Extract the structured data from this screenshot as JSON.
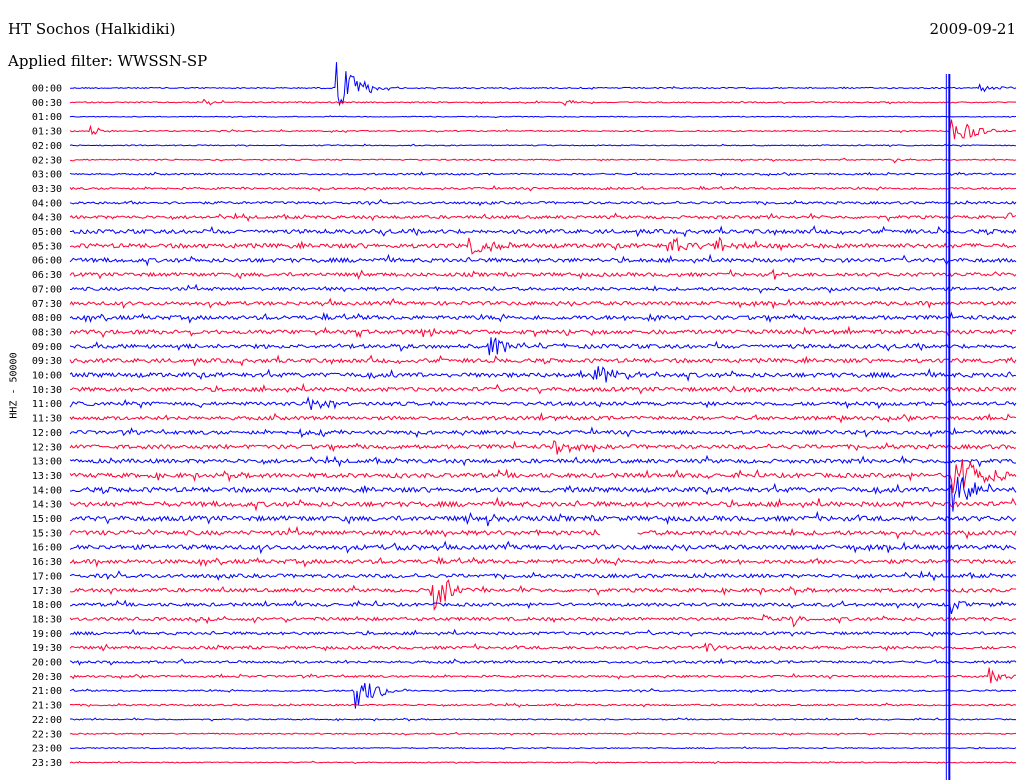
{
  "header": {
    "station": "HT Sochos (Halkidiki)",
    "filter": "Applied filter: WWSSN-SP",
    "date": "2009-09-21",
    "channel": "HHZ - 50000"
  },
  "chart_data": {
    "type": "line",
    "title": "HT Sochos (Halkidiki)",
    "subtitle": "Applied filter: WWSSN-SP",
    "ylabel": "HHZ - 50000",
    "date": "2009-09-21",
    "rows": [
      "00:00",
      "00:30",
      "01:00",
      "01:30",
      "02:00",
      "02:30",
      "03:00",
      "03:30",
      "04:00",
      "04:30",
      "05:00",
      "05:30",
      "06:00",
      "06:30",
      "07:00",
      "07:30",
      "08:00",
      "08:30",
      "09:00",
      "09:30",
      "10:00",
      "10:30",
      "11:00",
      "11:30",
      "12:00",
      "12:30",
      "13:00",
      "13:30",
      "14:00",
      "14:30",
      "15:00",
      "15:30",
      "16:00",
      "16:30",
      "17:00",
      "17:30",
      "18:00",
      "18:30",
      "19:00",
      "19:30",
      "20:00",
      "20:30",
      "21:00",
      "21:30",
      "22:00",
      "22:30",
      "23:00",
      "23:30"
    ],
    "series_colors": [
      "#0000ff",
      "#ff0033"
    ],
    "noise_levels": [
      0.6,
      0.6,
      0.4,
      0.6,
      0.5,
      0.6,
      0.8,
      1.0,
      1.2,
      1.5,
      2.0,
      2.2,
      2.0,
      1.8,
      1.6,
      1.8,
      2.0,
      2.0,
      2.0,
      2.0,
      2.2,
      2.0,
      1.8,
      1.8,
      1.8,
      2.0,
      2.0,
      2.2,
      2.4,
      2.4,
      2.4,
      2.2,
      2.2,
      2.0,
      1.8,
      1.8,
      1.6,
      1.6,
      1.4,
      1.4,
      1.2,
      1.0,
      0.8,
      0.8,
      0.6,
      0.6,
      0.5,
      0.5
    ],
    "events": [
      {
        "row": 0,
        "x": 0.28,
        "amp": 38,
        "len": 0.04
      },
      {
        "row": 0,
        "x": 0.96,
        "amp": 6,
        "len": 0.03
      },
      {
        "row": 1,
        "x": 0.14,
        "amp": 5,
        "len": 0.02
      },
      {
        "row": 1,
        "x": 0.52,
        "amp": 5,
        "len": 0.02
      },
      {
        "row": 3,
        "x": 0.02,
        "amp": 8,
        "len": 0.02
      },
      {
        "row": 3,
        "x": 0.93,
        "amp": 24,
        "len": 0.04
      },
      {
        "row": 5,
        "x": 0.87,
        "amp": 4,
        "len": 0.02
      },
      {
        "row": 7,
        "x": 0.56,
        "amp": 4,
        "len": 0.02
      },
      {
        "row": 9,
        "x": 0.99,
        "amp": 8,
        "len": 0.02
      },
      {
        "row": 11,
        "x": 0.42,
        "amp": 10,
        "len": 0.04
      },
      {
        "row": 11,
        "x": 0.63,
        "amp": 12,
        "len": 0.04
      },
      {
        "row": 11,
        "x": 0.68,
        "amp": 10,
        "len": 0.03
      },
      {
        "row": 13,
        "x": 0.74,
        "amp": 6,
        "len": 0.02
      },
      {
        "row": 16,
        "x": 0.61,
        "amp": 6,
        "len": 0.03
      },
      {
        "row": 17,
        "x": 0.37,
        "amp": 7,
        "len": 0.03
      },
      {
        "row": 18,
        "x": 0.44,
        "amp": 12,
        "len": 0.04
      },
      {
        "row": 20,
        "x": 0.55,
        "amp": 12,
        "len": 0.06
      },
      {
        "row": 21,
        "x": 0.69,
        "amp": 6,
        "len": 0.03
      },
      {
        "row": 22,
        "x": 0.25,
        "amp": 12,
        "len": 0.03
      },
      {
        "row": 24,
        "x": 0.24,
        "amp": 6,
        "len": 0.03
      },
      {
        "row": 25,
        "x": 0.51,
        "amp": 16,
        "len": 0.03
      },
      {
        "row": 27,
        "x": 0.93,
        "amp": 30,
        "len": 0.06
      },
      {
        "row": 28,
        "x": 0.93,
        "amp": 26,
        "len": 0.05
      },
      {
        "row": 30,
        "x": 0.44,
        "amp": 8,
        "len": 0.03
      },
      {
        "row": 32,
        "x": 0.34,
        "amp": 9,
        "len": 0.03
      },
      {
        "row": 35,
        "x": 0.38,
        "amp": 30,
        "len": 0.04
      },
      {
        "row": 36,
        "x": 0.93,
        "amp": 10,
        "len": 0.03
      },
      {
        "row": 37,
        "x": 0.76,
        "amp": 16,
        "len": 0.02
      },
      {
        "row": 37,
        "x": 0.73,
        "amp": 8,
        "len": 0.02
      },
      {
        "row": 39,
        "x": 0.67,
        "amp": 8,
        "len": 0.02
      },
      {
        "row": 41,
        "x": 0.97,
        "amp": 12,
        "len": 0.03
      },
      {
        "row": 42,
        "x": 0.3,
        "amp": 26,
        "len": 0.04
      }
    ],
    "gap": {
      "row": 31,
      "x0": 0.56,
      "x1": 0.6
    },
    "marker_time": 0.92
  }
}
